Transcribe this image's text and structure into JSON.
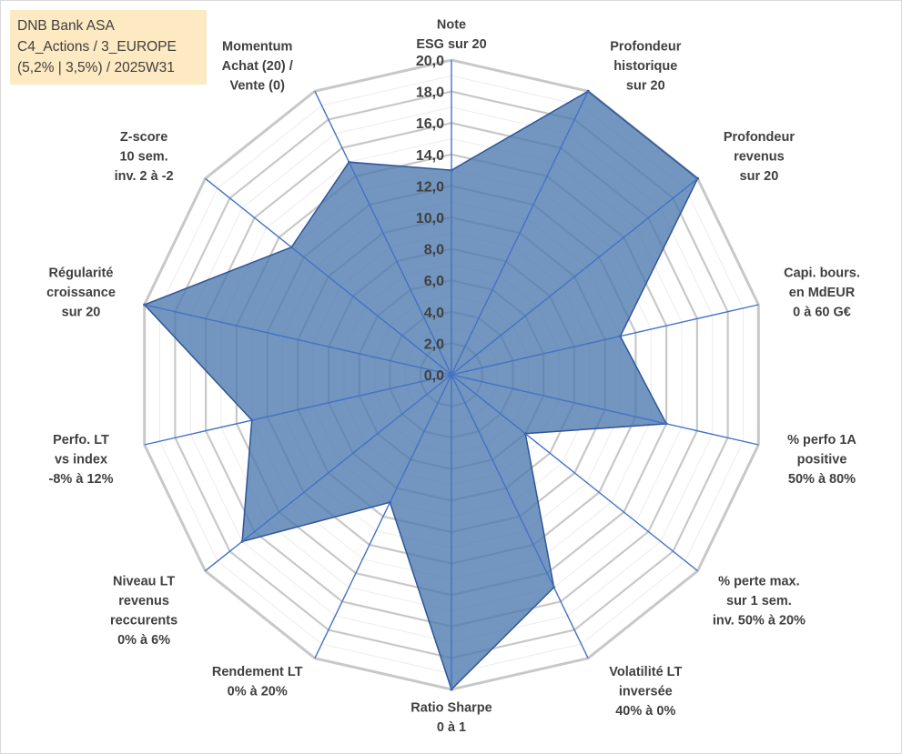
{
  "title_box": {
    "lines": [
      "DNB Bank ASA",
      "C4_Actions / 3_EUROPE",
      "(5,2% | 3,5%) / 2025W31"
    ]
  },
  "colors": {
    "fill": "#4a78ae",
    "stroke": "#2f5597",
    "spoke": "#4472c4",
    "grid": "#c8c8c8",
    "text": "#404040",
    "title_bg": "#fde9c2"
  },
  "chart_data": {
    "type": "radar",
    "rmin": 0,
    "rmax": 20,
    "tick_step": 2,
    "tick_labels": [
      "0,0",
      "2,0",
      "4,0",
      "6,0",
      "8,0",
      "10,0",
      "12,0",
      "14,0",
      "16,0",
      "18,0",
      "20,0"
    ],
    "axes": [
      {
        "label": [
          "Note",
          "ESG sur 20"
        ],
        "value": 13
      },
      {
        "label": [
          "Profondeur",
          "historique",
          "sur 20"
        ],
        "value": 20
      },
      {
        "label": [
          "Profondeur",
          "revenus",
          "sur 20"
        ],
        "value": 20
      },
      {
        "label": [
          "Capi. bours.",
          "en MdEUR",
          "0 à 60 G€"
        ],
        "value": 11
      },
      {
        "label": [
          "% perfo 1A",
          "positive",
          "50% à 80%"
        ],
        "value": 14
      },
      {
        "label": [
          "% perte max.",
          "sur 1 sem.",
          "inv. 50% à 20%"
        ],
        "value": 6
      },
      {
        "label": [
          "Volatilité LT",
          "inversée",
          "40% à 0%"
        ],
        "value": 15
      },
      {
        "label": [
          "Ratio Sharpe",
          "0 à 1"
        ],
        "value": 20
      },
      {
        "label": [
          "Rendement LT",
          "0% à 20%"
        ],
        "value": 9
      },
      {
        "label": [
          "Niveau LT",
          "revenus",
          "reccurents",
          "0% à 6%"
        ],
        "value": 17
      },
      {
        "label": [
          "Perfo. LT",
          "vs index",
          "-8% à 12%"
        ],
        "value": 13
      },
      {
        "label": [
          "Régularité",
          "croissance",
          "sur 20"
        ],
        "value": 20
      },
      {
        "label": [
          "Z-score",
          "10 sem.",
          "inv. 2 à -2"
        ],
        "value": 13
      },
      {
        "label": [
          "Momentum",
          "Achat (20) /",
          "Vente (0)"
        ],
        "value": 15
      }
    ]
  }
}
